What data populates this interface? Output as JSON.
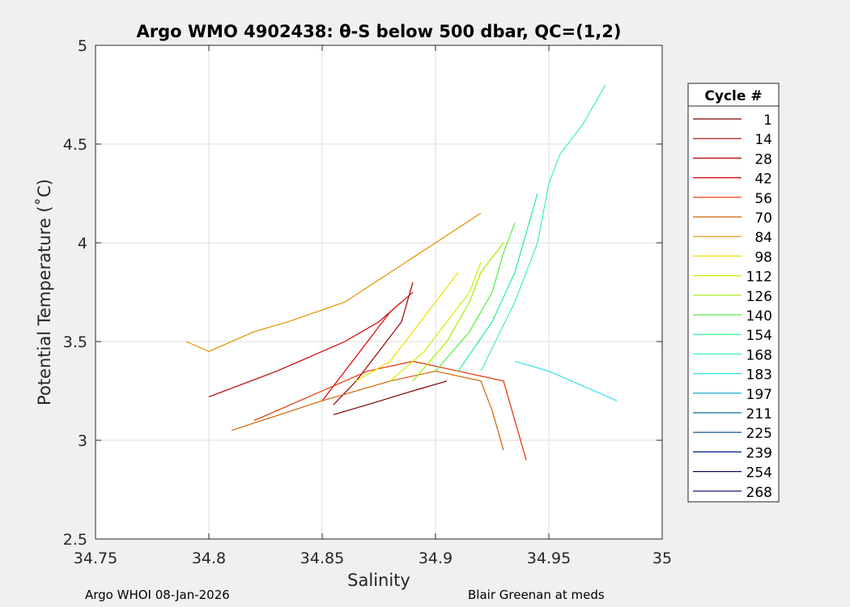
{
  "chart_data": {
    "type": "line",
    "title": "Argo WMO 4902438: θ-S below 500 dbar,  QC=(1,2)",
    "xlabel": "Salinity",
    "ylabel": "Potential Temperature (˚C)",
    "xlim": [
      34.75,
      35
    ],
    "ylim": [
      2.5,
      5
    ],
    "xticks": [
      "34.75",
      "34.8",
      "34.85",
      "34.9",
      "34.95",
      "35"
    ],
    "yticks": [
      "2.5",
      "3",
      "3.5",
      "4",
      "4.5",
      "5"
    ],
    "grid": true,
    "legend_title": "Cycle #",
    "legend_position": "outside right",
    "series": [
      {
        "name": "1",
        "color": "#800000",
        "x": [
          34.855,
          34.87,
          34.89,
          34.905
        ],
        "y": [
          3.13,
          3.18,
          3.25,
          3.3
        ]
      },
      {
        "name": "14",
        "color": "#a00000",
        "x": [
          34.855,
          34.865,
          34.875,
          34.885,
          34.89
        ],
        "y": [
          3.18,
          3.3,
          3.45,
          3.6,
          3.8
        ]
      },
      {
        "name": "28",
        "color": "#c00000",
        "x": [
          34.8,
          34.83,
          34.86,
          34.875,
          34.885
        ],
        "y": [
          3.22,
          3.35,
          3.5,
          3.6,
          3.7
        ]
      },
      {
        "name": "42",
        "color": "#e00000",
        "x": [
          34.85,
          34.86,
          34.87,
          34.88,
          34.89
        ],
        "y": [
          3.2,
          3.35,
          3.5,
          3.65,
          3.75
        ]
      },
      {
        "name": "56",
        "color": "#e03000",
        "x": [
          34.82,
          34.85,
          34.87,
          34.89,
          34.91,
          34.93,
          34.935,
          34.94
        ],
        "y": [
          3.1,
          3.25,
          3.35,
          3.4,
          3.35,
          3.3,
          3.1,
          2.9
        ]
      },
      {
        "name": "70",
        "color": "#d06000",
        "x": [
          34.81,
          34.85,
          34.88,
          34.9,
          34.92,
          34.925,
          34.93
        ],
        "y": [
          3.05,
          3.2,
          3.3,
          3.35,
          3.3,
          3.15,
          2.95
        ]
      },
      {
        "name": "84",
        "color": "#e09000",
        "x": [
          34.79,
          34.8,
          34.82,
          34.835,
          34.86,
          34.88,
          34.9,
          34.92
        ],
        "y": [
          3.5,
          3.45,
          3.55,
          3.6,
          3.7,
          3.85,
          4.0,
          4.15
        ]
      },
      {
        "name": "98",
        "color": "#f0e000",
        "x": [
          34.865,
          34.88,
          34.89,
          34.9,
          34.91
        ],
        "y": [
          3.3,
          3.4,
          3.55,
          3.7,
          3.85
        ]
      },
      {
        "name": "112",
        "color": "#d0f000",
        "x": [
          34.88,
          34.895,
          34.905,
          34.915,
          34.92
        ],
        "y": [
          3.3,
          3.45,
          3.6,
          3.75,
          3.9
        ]
      },
      {
        "name": "126",
        "color": "#a0f000",
        "x": [
          34.89,
          34.905,
          34.915,
          34.92,
          34.93
        ],
        "y": [
          3.3,
          3.5,
          3.7,
          3.85,
          4.0
        ]
      },
      {
        "name": "140",
        "color": "#50f040",
        "x": [
          34.9,
          34.915,
          34.925,
          34.93,
          34.935
        ],
        "y": [
          3.35,
          3.55,
          3.75,
          3.95,
          4.1
        ]
      },
      {
        "name": "154",
        "color": "#20f090",
        "x": [
          34.91,
          34.925,
          34.935,
          34.94,
          34.945
        ],
        "y": [
          3.35,
          3.6,
          3.85,
          4.05,
          4.25
        ]
      },
      {
        "name": "168",
        "color": "#40f0c0",
        "x": [
          34.92,
          34.935,
          34.945,
          34.95,
          34.955,
          34.965,
          34.975
        ],
        "y": [
          3.35,
          3.7,
          4.0,
          4.3,
          4.45,
          4.6,
          4.8
        ]
      },
      {
        "name": "183",
        "color": "#30e0e0",
        "x": [
          34.935,
          34.95,
          34.96,
          34.97,
          34.98
        ],
        "y": [
          3.4,
          3.35,
          3.3,
          3.25,
          3.2
        ]
      },
      {
        "name": "197",
        "color": "#00a0c0",
        "x": [],
        "y": []
      },
      {
        "name": "211",
        "color": "#007090",
        "x": [],
        "y": []
      },
      {
        "name": "225",
        "color": "#004080",
        "x": [],
        "y": []
      },
      {
        "name": "239",
        "color": "#002080",
        "x": [],
        "y": []
      },
      {
        "name": "254",
        "color": "#200060",
        "x": [],
        "y": []
      },
      {
        "name": "268",
        "color": "#000060",
        "x": [],
        "y": []
      }
    ]
  },
  "footer": {
    "left": "Argo WHOI 08-Jan-2026",
    "right": "Blair Greenan at meds"
  }
}
